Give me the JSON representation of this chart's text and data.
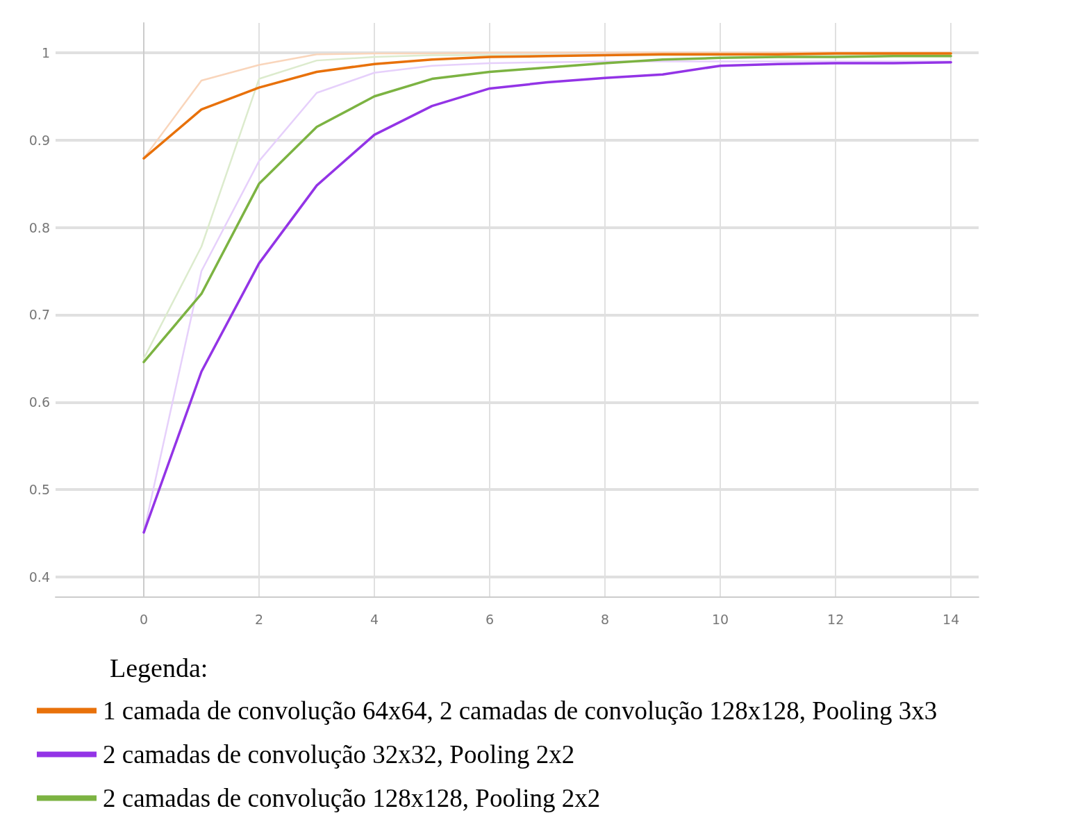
{
  "chart_data": {
    "type": "line",
    "legend_title": "Legenda:",
    "x": [
      0,
      1,
      2,
      3,
      4,
      5,
      6,
      7,
      8,
      9,
      10,
      11,
      12,
      13,
      14
    ],
    "xlim": [
      -1.53,
      14.48
    ],
    "xticks": [
      0,
      2,
      4,
      6,
      8,
      10,
      12,
      14
    ],
    "ylim": [
      0.377,
      1.034
    ],
    "yticks": [
      0.4,
      0.5,
      0.6,
      0.7,
      0.8,
      0.9,
      1
    ],
    "grid": true,
    "legend": "bottom",
    "marker": "none",
    "line_style": "solid",
    "series": [
      {
        "color": "#f9d5bb",
        "values": [
          0.879,
          0.968,
          0.986,
          0.998,
          0.999,
          0.999,
          1.0,
          1.0,
          1.0,
          1.0,
          1.0,
          1.0,
          1.0,
          1.0,
          1.0
        ]
      },
      {
        "color": "#e6d0fb",
        "values": [
          0.451,
          0.75,
          0.876,
          0.954,
          0.977,
          0.985,
          0.988,
          0.989,
          0.99,
          0.99,
          0.99,
          0.99,
          0.99,
          0.99,
          0.99
        ]
      },
      {
        "color": "#dcebcd",
        "values": [
          0.65,
          0.778,
          0.97,
          0.991,
          0.995,
          0.997,
          0.997,
          0.997,
          0.997,
          0.997,
          0.997,
          0.997,
          0.997,
          0.997,
          0.997
        ]
      },
      {
        "name": "1 camada de convolução 64x64, 2 camadas de convolução 128x128, Pooling 3x3",
        "color": "#e8710a",
        "values": [
          0.879,
          0.935,
          0.96,
          0.978,
          0.987,
          0.992,
          0.995,
          0.996,
          0.997,
          0.998,
          0.998,
          0.998,
          0.999,
          0.999,
          0.999
        ]
      },
      {
        "name": "2 camadas de convolução 32x32, Pooling 2x2",
        "color": "#9334e6",
        "values": [
          0.451,
          0.635,
          0.759,
          0.848,
          0.906,
          0.939,
          0.959,
          0.966,
          0.971,
          0.975,
          0.985,
          0.987,
          0.988,
          0.988,
          0.989
        ]
      },
      {
        "name": "2 camadas de convolução 128x128, Pooling 2x2",
        "color": "#7cb342",
        "values": [
          0.646,
          0.724,
          0.85,
          0.915,
          0.95,
          0.97,
          0.978,
          0.983,
          0.988,
          0.992,
          0.994,
          0.995,
          0.995,
          0.996,
          0.996
        ]
      }
    ]
  }
}
